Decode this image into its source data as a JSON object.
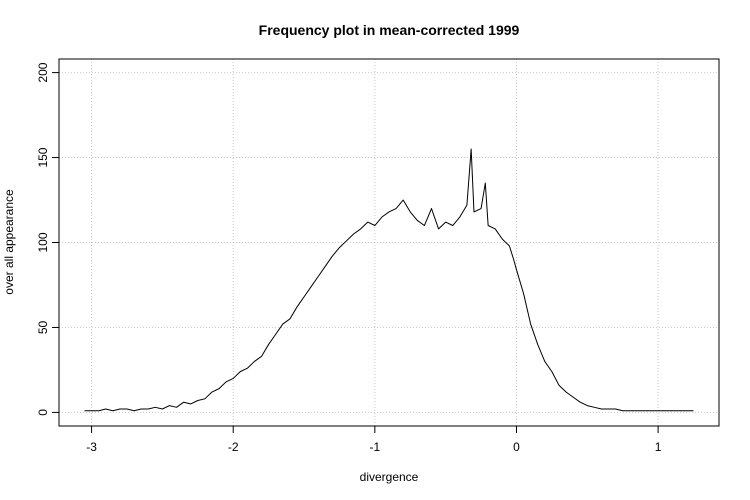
{
  "chart_data": {
    "type": "line",
    "title": "Frequency plot in mean-corrected 1999",
    "xlabel": "divergence",
    "ylabel": "over all appearance",
    "xlim": [
      -3.23,
      1.43
    ],
    "ylim": [
      -8,
      208
    ],
    "x_ticks": [
      -3,
      -2,
      -1,
      0,
      1
    ],
    "y_ticks": [
      0,
      50,
      100,
      150,
      200
    ],
    "grid": true,
    "grid_style": "dotted-lightgray",
    "line_color": "#000000",
    "series": [
      {
        "x": [
          -3.05,
          -2.95,
          -2.9,
          -2.85,
          -2.8,
          -2.75,
          -2.7,
          -2.65,
          -2.6,
          -2.55,
          -2.5,
          -2.45,
          -2.4,
          -2.35,
          -2.3,
          -2.25,
          -2.2,
          -2.15,
          -2.1,
          -2.05,
          -2.0,
          -1.95,
          -1.9,
          -1.85,
          -1.8,
          -1.75,
          -1.7,
          -1.65,
          -1.6,
          -1.55,
          -1.5,
          -1.45,
          -1.4,
          -1.35,
          -1.3,
          -1.25,
          -1.2,
          -1.15,
          -1.1,
          -1.05,
          -1.0,
          -0.95,
          -0.9,
          -0.85,
          -0.8,
          -0.75,
          -0.7,
          -0.65,
          -0.6,
          -0.55,
          -0.5,
          -0.45,
          -0.4,
          -0.35,
          -0.32,
          -0.3,
          -0.25,
          -0.22,
          -0.2,
          -0.15,
          -0.1,
          -0.05,
          -0.02,
          0.0,
          0.05,
          0.1,
          0.15,
          0.2,
          0.25,
          0.3,
          0.35,
          0.4,
          0.45,
          0.5,
          0.55,
          0.6,
          0.65,
          0.7,
          0.75,
          0.8,
          0.85,
          0.9,
          0.95,
          1.0,
          1.05,
          1.1,
          1.15,
          1.2,
          1.25
        ],
        "y": [
          1,
          1,
          2,
          1,
          2,
          2,
          1,
          2,
          2,
          3,
          2,
          4,
          3,
          6,
          5,
          7,
          8,
          12,
          14,
          18,
          20,
          24,
          26,
          30,
          33,
          40,
          46,
          52,
          55,
          62,
          68,
          74,
          80,
          86,
          92,
          97,
          101,
          105,
          108,
          112,
          110,
          115,
          118,
          120,
          125,
          118,
          113,
          110,
          120,
          108,
          112,
          110,
          115,
          122,
          155,
          118,
          120,
          135,
          110,
          108,
          102,
          98,
          90,
          84,
          70,
          52,
          40,
          30,
          24,
          16,
          12,
          9,
          6,
          4,
          3,
          2,
          2,
          2,
          1,
          1,
          1,
          1,
          1,
          1,
          1,
          1,
          1,
          1,
          1
        ]
      }
    ]
  }
}
